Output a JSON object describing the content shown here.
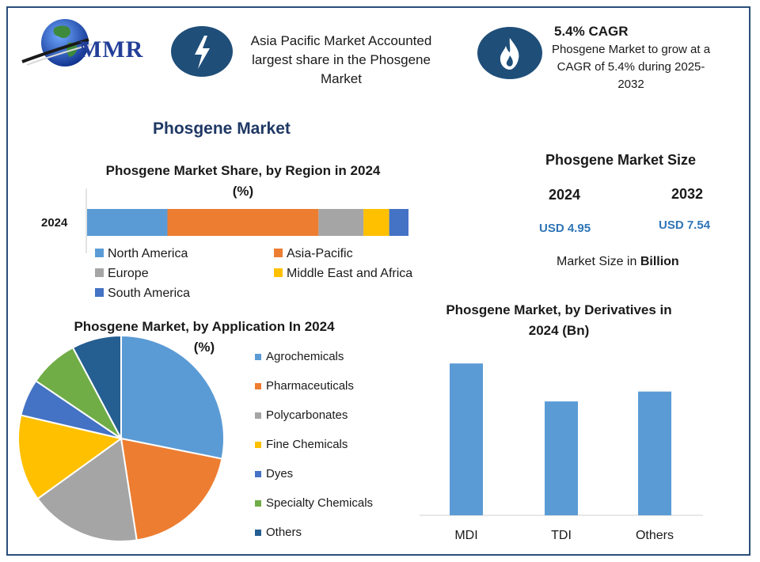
{
  "header": {
    "logo_text": "MMR",
    "left_text_lines": [
      "Asia Pacific Market Accounted",
      "largest share in the Phosgene",
      "Market"
    ],
    "cagr_title": "5.4% CAGR",
    "cagr_lines": [
      "Phosgene Market to grow at a",
      "CAGR of 5.4% during 2025-",
      "2032"
    ]
  },
  "main_title": "Phosgene Market",
  "market_size": {
    "title": "Phosgene Market Size",
    "year1": "2024",
    "year2": "2032",
    "value1": "USD 4.95",
    "value2": "USD 7.54",
    "unit_prefix": "Market Size in ",
    "unit_bold": "Billion"
  },
  "colors": {
    "blue": "#5b9bd5",
    "orange": "#ed7d31",
    "gray": "#a5a5a5",
    "yellow": "#ffc000",
    "dark_blue": "#4472c4",
    "green": "#70ad47",
    "navy": "#255e91",
    "icon_bg": "#1f4e79"
  },
  "icons": {
    "left": "lightning-bolt-icon",
    "right": "flame-icon",
    "logo": "globe-icon"
  },
  "chart_data": [
    {
      "type": "bar",
      "orientation": "horizontal",
      "stacked": true,
      "title_lines": [
        "Phosgene Market Share, by Region in 2024",
        "(%)"
      ],
      "categories": [
        "2024"
      ],
      "series": [
        {
          "name": "North America",
          "values": [
            25
          ],
          "color": "#5b9bd5"
        },
        {
          "name": "Asia-Pacific",
          "values": [
            47
          ],
          "color": "#ed7d31"
        },
        {
          "name": "Europe",
          "values": [
            14
          ],
          "color": "#a5a5a5"
        },
        {
          "name": "Middle East and Africa",
          "values": [
            8
          ],
          "color": "#ffc000"
        },
        {
          "name": "South America",
          "values": [
            6
          ],
          "color": "#4472c4"
        }
      ],
      "legend": "bottom"
    },
    {
      "type": "pie",
      "title_lines": [
        "Phosgene Market, by Application In 2024",
        "(%)"
      ],
      "labels": [
        "Agrochemicals",
        "Pharmaceuticals",
        "Polycarbonates",
        "Fine Chemicals",
        "Dyes",
        "Specialty Chemicals",
        "Others"
      ],
      "values": [
        29,
        20,
        18,
        14,
        6,
        8,
        8
      ],
      "colors": [
        "#5b9bd5",
        "#ed7d31",
        "#a5a5a5",
        "#ffc000",
        "#4472c4",
        "#70ad47",
        "#255e91"
      ],
      "legend": "right"
    },
    {
      "type": "bar",
      "title_lines": [
        "Phosgene Market, by Derivatives in",
        "2024 (Bn)"
      ],
      "categories": [
        "MDI",
        "TDI",
        "Others"
      ],
      "values": [
        2.0,
        1.5,
        1.63
      ],
      "ylim": [
        0,
        2.2
      ],
      "color": "#5b9bd5"
    }
  ]
}
